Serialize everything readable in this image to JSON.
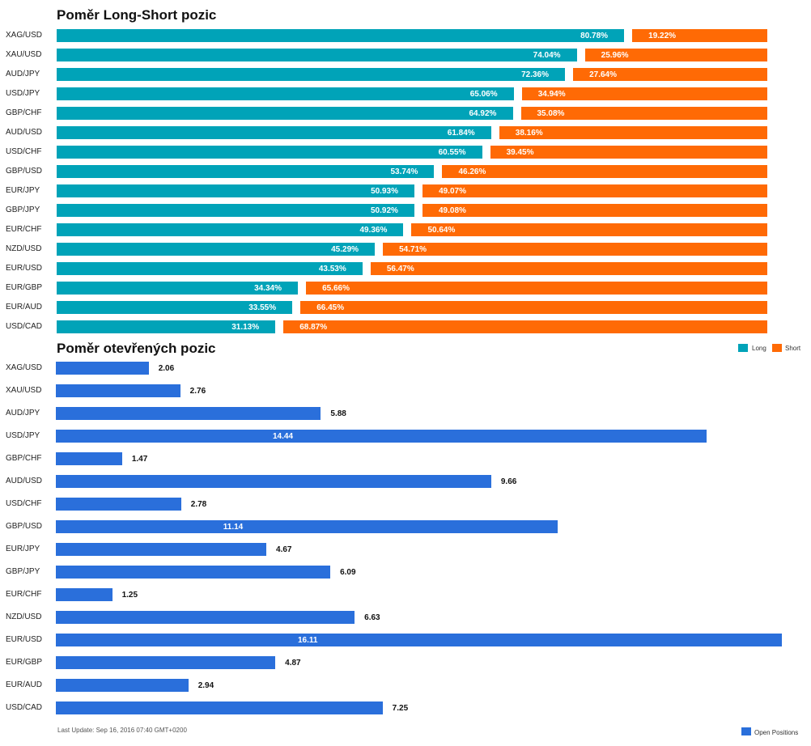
{
  "colors": {
    "long": "#00a3b8",
    "short": "#ff6a05",
    "open": "#2a6fdb"
  },
  "chart_data": [
    {
      "type": "bar",
      "title": "Poměr Long-Short pozic",
      "categories": [
        "XAG/USD",
        "XAU/USD",
        "AUD/JPY",
        "USD/JPY",
        "GBP/CHF",
        "AUD/USD",
        "USD/CHF",
        "GBP/USD",
        "EUR/JPY",
        "GBP/JPY",
        "EUR/CHF",
        "NZD/USD",
        "EUR/USD",
        "EUR/GBP",
        "EUR/AUD",
        "USD/CAD"
      ],
      "series": [
        {
          "name": "Long",
          "values": [
            80.78,
            74.04,
            72.36,
            65.06,
            64.92,
            61.84,
            60.55,
            53.74,
            50.93,
            50.92,
            49.36,
            45.29,
            43.53,
            34.34,
            33.55,
            31.13
          ],
          "labels": [
            "80.78%",
            "74.04%",
            "72.36%",
            "65.06%",
            "64.92%",
            "61.84%",
            "60.55%",
            "53.74%",
            "50.93%",
            "50.92%",
            "49.36%",
            "45.29%",
            "43.53%",
            "34.34%",
            "33.55%",
            "31.13%"
          ]
        },
        {
          "name": "Short",
          "values": [
            19.22,
            25.96,
            27.64,
            34.94,
            35.08,
            38.16,
            39.45,
            46.26,
            49.07,
            49.08,
            50.64,
            54.71,
            56.47,
            65.66,
            66.45,
            68.87
          ],
          "labels": [
            "19.22%",
            "25.96%",
            "27.64%",
            "34.94%",
            "35.08%",
            "38.16%",
            "39.45%",
            "46.26%",
            "49.07%",
            "49.08%",
            "50.64%",
            "54.71%",
            "56.47%",
            "65.66%",
            "66.45%",
            "68.87%"
          ]
        }
      ],
      "legend": "top-right"
    },
    {
      "type": "bar",
      "title": "Poměr otevřených pozic",
      "categories": [
        "XAG/USD",
        "XAU/USD",
        "AUD/JPY",
        "USD/JPY",
        "GBP/CHF",
        "AUD/USD",
        "USD/CHF",
        "GBP/USD",
        "EUR/JPY",
        "GBP/JPY",
        "EUR/CHF",
        "NZD/USD",
        "EUR/USD",
        "EUR/GBP",
        "EUR/AUD",
        "USD/CAD"
      ],
      "series": [
        {
          "name": "Open Positions",
          "values": [
            2.06,
            2.76,
            5.88,
            14.44,
            1.47,
            9.66,
            2.78,
            11.14,
            4.67,
            6.09,
            1.25,
            6.63,
            16.11,
            4.87,
            2.94,
            7.25
          ],
          "labels": [
            "2.06",
            "2.76",
            "5.88",
            "14.44",
            "1.47",
            "9.66",
            "2.78",
            "11.14",
            "4.67",
            "6.09",
            "1.25",
            "6.63",
            "16.11",
            "4.87",
            "2.94",
            "7.25"
          ]
        }
      ],
      "legend": "bottom-right"
    }
  ],
  "footer": "Last Update: Sep 16, 2016 07:40 GMT+0200"
}
